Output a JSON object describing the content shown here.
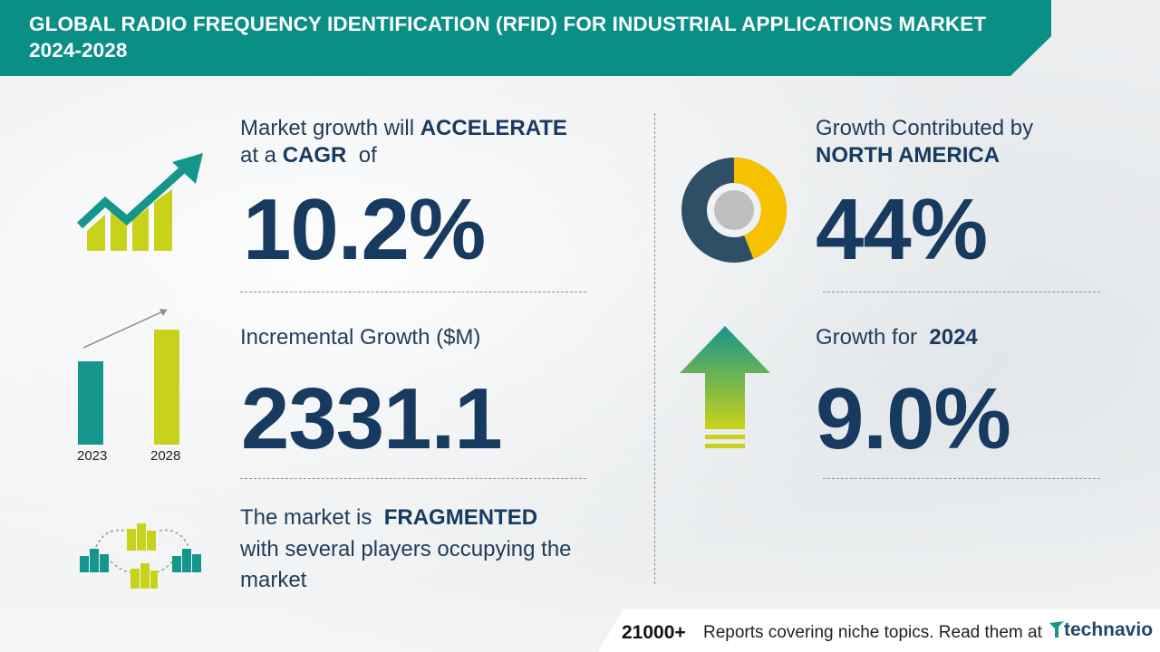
{
  "header": {
    "title": "Global Radio Frequency Identification (RFID) for Industrial Applications Market 2024-2028"
  },
  "cagr": {
    "line1_prefix": "Market growth will",
    "line1_emph": "ACCELERATE",
    "line2_prefix": "at a",
    "line2_emph": "CAGR",
    "line2_suffix": "of",
    "value": "10.2%",
    "icon": "growth-chart-arrow-icon"
  },
  "incremental": {
    "label": "Incremental Growth ($M)",
    "value": "2331.1",
    "bars": [
      {
        "label": "2023",
        "color": "#14968c"
      },
      {
        "label": "2028",
        "color": "#c9d21a"
      }
    ]
  },
  "fragmented": {
    "line1_prefix": "The market is",
    "line1_emph": "FRAGMENTED",
    "line2": "with several players occupying the",
    "line3": "market",
    "icon": "buildings-network-icon"
  },
  "region": {
    "line1": "Growth Contributed by",
    "line2_emph": "NORTH AMERICA",
    "value": "44%",
    "share_fraction": 0.44,
    "colors": {
      "share": "#f6c200",
      "rest": "#2f4f66"
    },
    "icon": "donut-chart-icon"
  },
  "year_growth": {
    "label_prefix": "Growth for",
    "label_emph": "2024",
    "value": "9.0%",
    "icon": "up-arrow-icon"
  },
  "footer": {
    "count": "21000+",
    "reports": "Reports covering niche topics. Read them at",
    "brand": "technavio"
  },
  "colors": {
    "accent": "#0a8f86",
    "navy": "#173a60",
    "lime": "#c9d21a"
  }
}
